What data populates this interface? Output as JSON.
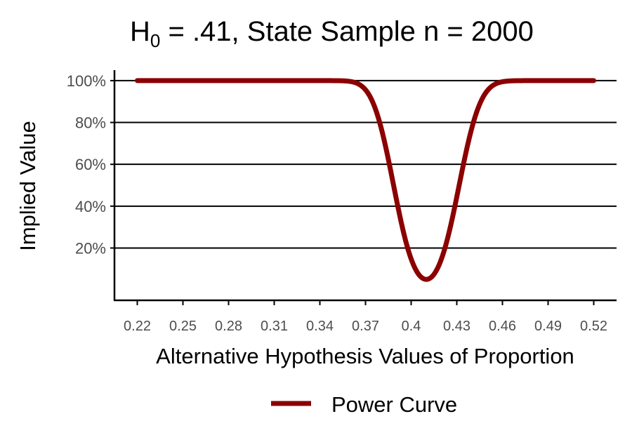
{
  "chart_data": {
    "type": "line",
    "title": {
      "prefix": "H",
      "subscript": "0",
      "rest": " = .41, State Sample n = 2000"
    },
    "xlabel": "Alternative Hypothesis Values of Proportion",
    "ylabel": "Implied Value",
    "xlim": [
      0.205,
      0.535
    ],
    "ylim": [
      -0.05,
      1.05
    ],
    "x_ticks": [
      0.22,
      0.25,
      0.28,
      0.31,
      0.34,
      0.37,
      0.4,
      0.43,
      0.46,
      0.49,
      0.52
    ],
    "x_tick_labels": [
      "0.22",
      "0.25",
      "0.28",
      "0.31",
      "0.34",
      "0.37",
      "0.4",
      "0.43",
      "0.46",
      "0.49",
      "0.52"
    ],
    "y_ticks": [
      0.2,
      0.4,
      0.6,
      0.8,
      1.0
    ],
    "y_tick_labels": [
      "20%",
      "40%",
      "60%",
      "80%",
      "100%"
    ],
    "grid": "horizontal major lines",
    "legend_position": "bottom",
    "series": [
      {
        "name": "Power Curve",
        "color": "#8b0000",
        "power_test": {
          "null_proportion": 0.41,
          "sample_size": 2000,
          "alpha": 0.05
        },
        "x_range": [
          0.22,
          0.52
        ]
      }
    ]
  }
}
